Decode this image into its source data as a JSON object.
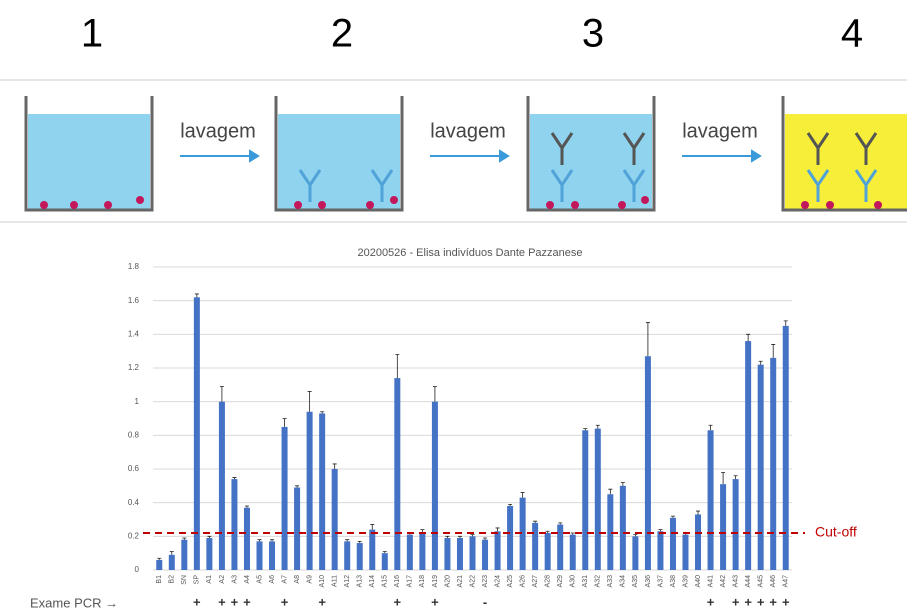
{
  "steps": {
    "numbers": [
      "1",
      "2",
      "3",
      "4"
    ],
    "wash_labels": [
      "lavagem",
      "lavagem",
      "lavagem"
    ]
  },
  "chart_data": {
    "type": "bar",
    "title": "20200526 - Elisa indivíduos Dante Pazzanese",
    "categories": [
      "B1",
      "B2",
      "SN",
      "SP",
      "A1",
      "A2",
      "A3",
      "A4",
      "A5",
      "A6",
      "A7",
      "A8",
      "A9",
      "A10",
      "A11",
      "A12",
      "A13",
      "A14",
      "A15",
      "A16",
      "A17",
      "A18",
      "A19",
      "A20",
      "A21",
      "A22",
      "A23",
      "A24",
      "A25",
      "A26",
      "A27",
      "A28",
      "A29",
      "A30",
      "A31",
      "A32",
      "A33",
      "A34",
      "A35",
      "A36",
      "A37",
      "A38",
      "A39",
      "A40",
      "A41",
      "A42",
      "A43",
      "A44",
      "A45",
      "A46",
      "A47"
    ],
    "values": [
      0.06,
      0.09,
      0.18,
      1.62,
      0.19,
      1.0,
      0.54,
      0.37,
      0.17,
      0.17,
      0.85,
      0.49,
      0.94,
      0.93,
      0.6,
      0.17,
      0.16,
      0.24,
      0.1,
      1.14,
      0.21,
      0.22,
      1.0,
      0.19,
      0.19,
      0.2,
      0.18,
      0.23,
      0.38,
      0.43,
      0.28,
      0.22,
      0.27,
      0.21,
      0.83,
      0.84,
      0.45,
      0.5,
      0.2,
      1.27,
      0.23,
      0.31,
      0.21,
      0.33,
      0.83,
      0.51,
      0.54,
      1.36,
      1.22,
      1.26,
      1.45
    ],
    "errors": [
      0.01,
      0.02,
      0.01,
      0.02,
      0.01,
      0.09,
      0.01,
      0.01,
      0.01,
      0.01,
      0.05,
      0.01,
      0.12,
      0.01,
      0.03,
      0.01,
      0.01,
      0.03,
      0.01,
      0.14,
      0.01,
      0.02,
      0.09,
      0.01,
      0.01,
      0.01,
      0.01,
      0.02,
      0.01,
      0.03,
      0.01,
      0.01,
      0.01,
      0.01,
      0.01,
      0.02,
      0.03,
      0.02,
      0.01,
      0.2,
      0.01,
      0.01,
      0.01,
      0.02,
      0.03,
      0.07,
      0.02,
      0.04,
      0.02,
      0.08,
      0.03
    ],
    "color": "#4472c4",
    "ylim": [
      0,
      1.8
    ],
    "yticks": [
      0,
      0.2,
      0.4,
      0.6,
      0.8,
      1,
      1.2,
      1.4,
      1.6,
      1.8
    ],
    "grid": true,
    "cutoff": {
      "value": 0.22,
      "label": "Cut-off",
      "color": "#c00000"
    },
    "pcr_label": "Exame PCR →",
    "pcr": [
      null,
      null,
      null,
      "+",
      null,
      "+",
      "+",
      "+",
      null,
      null,
      "+",
      null,
      null,
      "+",
      null,
      null,
      null,
      null,
      null,
      "+",
      null,
      null,
      "+",
      null,
      null,
      null,
      "-",
      null,
      null,
      null,
      null,
      null,
      null,
      null,
      null,
      null,
      null,
      null,
      null,
      null,
      null,
      null,
      null,
      null,
      "+",
      null,
      "+",
      "+",
      "+",
      "+",
      "+"
    ]
  }
}
